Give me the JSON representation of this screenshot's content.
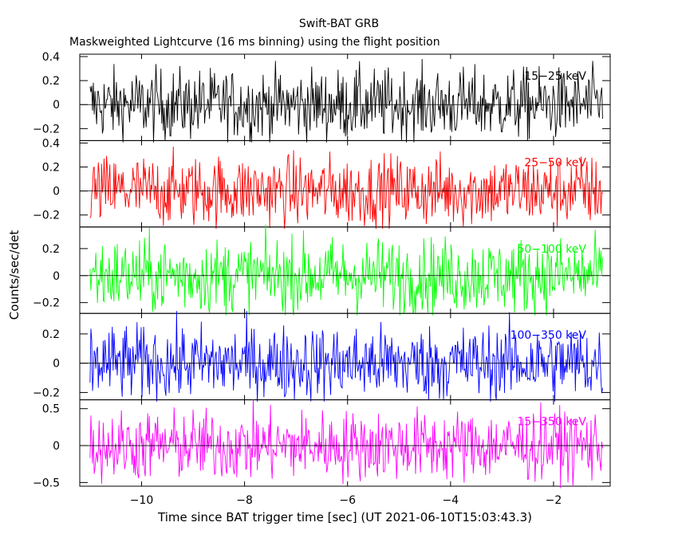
{
  "chart_data": {
    "type": "line",
    "title": "Swift-BAT GRB",
    "subtitle": "Maskweighted Lightcurve (16 ms binning) using the flight position",
    "xlabel": "Time since BAT trigger time [sec] (UT 2021-06-10T15:03:43.3)",
    "ylabel": "Counts/sec/det",
    "xlim": [
      -11.2,
      -0.9
    ],
    "x_range": [
      -11.0,
      -1.05
    ],
    "bin_width_sec": 0.016,
    "x_ticks": [
      -10,
      -8,
      -6,
      -4,
      -2
    ],
    "x_tick_labels": [
      "−10",
      "−8",
      "−6",
      "−4",
      "−2"
    ],
    "panels": [
      {
        "name": "15-25 keV",
        "label": "15−25 keV",
        "color": "#000000",
        "ylim": [
          -0.3,
          0.42
        ],
        "amplitude": 0.15,
        "y_ticks": [
          -0.2,
          0,
          0.2,
          0.4
        ],
        "y_tick_labels": [
          "−0.2",
          "0",
          "0.2",
          "0.4"
        ]
      },
      {
        "name": "25-50 keV",
        "label": "25−50 keV",
        "color": "#ff0000",
        "ylim": [
          -0.3,
          0.42
        ],
        "amplitude": 0.15,
        "y_ticks": [
          -0.2,
          0,
          0.2,
          0.4
        ],
        "y_tick_labels": [
          "−0.2",
          "0",
          "0.2",
          "0.4"
        ]
      },
      {
        "name": "50-100 keV",
        "label": "50−100 keV",
        "color": "#00ff00",
        "ylim": [
          -0.28,
          0.36
        ],
        "amplitude": 0.14,
        "y_ticks": [
          -0.2,
          0,
          0.2
        ],
        "y_tick_labels": [
          "−0.2",
          "0",
          "0.2"
        ]
      },
      {
        "name": "100-350 keV",
        "label": "100−350 keV",
        "color": "#0000ff",
        "ylim": [
          -0.25,
          0.34
        ],
        "amplitude": 0.13,
        "y_ticks": [
          -0.2,
          0,
          0.2
        ],
        "y_tick_labels": [
          "−0.2",
          "0",
          "0.2"
        ]
      },
      {
        "name": "15-350 keV",
        "label": "15−350 keV",
        "color": "#ff00ff",
        "ylim": [
          -0.55,
          0.62
        ],
        "amplitude": 0.24,
        "y_ticks": [
          -0.5,
          0,
          0.5
        ],
        "y_tick_labels": [
          "−0.5",
          "0",
          "0.5"
        ]
      }
    ],
    "grid": false,
    "legend": "none"
  }
}
